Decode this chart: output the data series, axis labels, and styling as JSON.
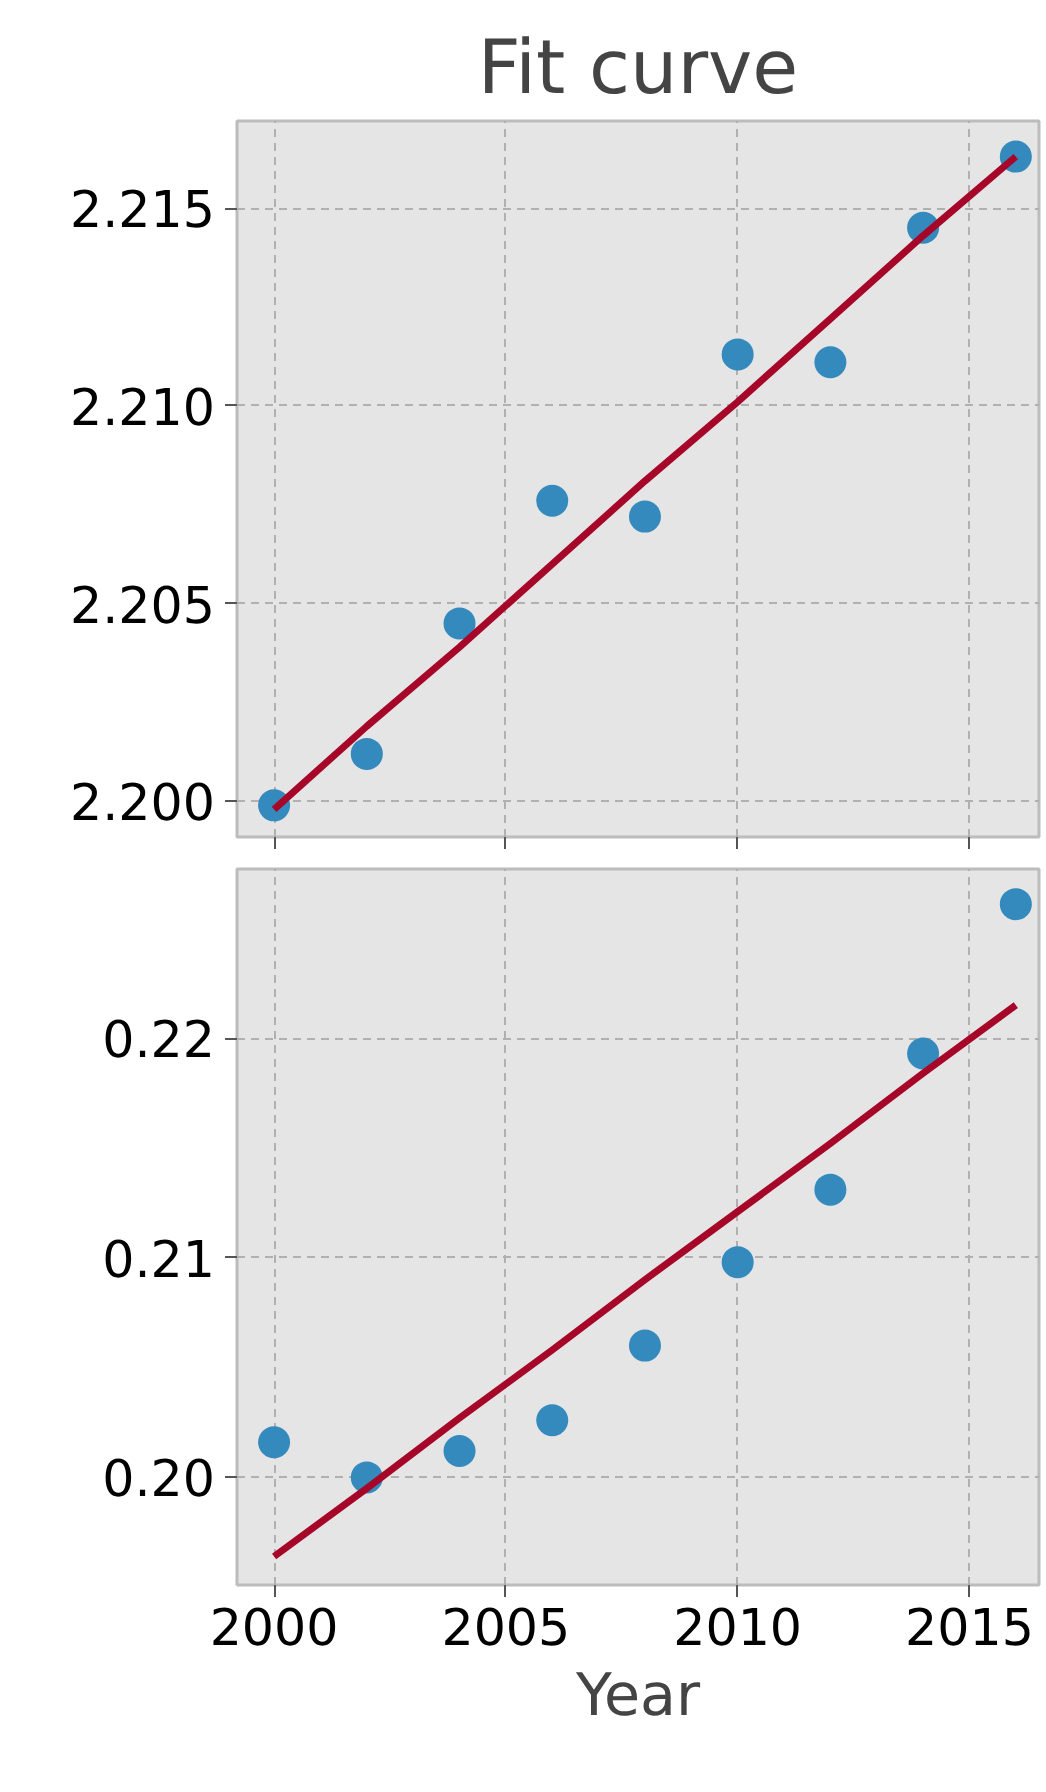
{
  "chart_data": [
    {
      "type": "scatter",
      "title": "Fit curve",
      "x": [
        2000,
        2002,
        2004,
        2006,
        2008,
        2010,
        2012,
        2014,
        2016
      ],
      "series": [
        {
          "marker": "circle",
          "color": "#348abd",
          "values": [
            2.1999,
            2.2012,
            2.2045,
            2.2076,
            2.2072,
            2.2113,
            2.2111,
            2.2145,
            2.2163
          ]
        },
        {
          "type": "line",
          "marker": "none",
          "color": "#a60628",
          "values": [
            2.1998,
            2.2019,
            2.2039,
            2.206,
            2.2081,
            2.2101,
            2.2122,
            2.2143,
            2.2163
          ]
        }
      ],
      "xlim": [
        1999.2,
        2016.5
      ],
      "ylim": [
        2.1991,
        2.2172
      ],
      "xticks": [
        2000,
        2005,
        2010,
        2015
      ],
      "yticks": [
        {
          "value": 2.2,
          "label": "2.200"
        },
        {
          "value": 2.205,
          "label": "2.205"
        },
        {
          "value": 2.21,
          "label": "2.210"
        },
        {
          "value": 2.215,
          "label": "2.215"
        }
      ],
      "grid": true,
      "tick_labels": "y"
    },
    {
      "type": "scatter",
      "xlabel": "Year",
      "x": [
        2000,
        2002,
        2004,
        2006,
        2008,
        2010,
        2012,
        2014,
        2016
      ],
      "series": [
        {
          "marker": "circle",
          "color": "#348abd",
          "values": [
            0.2016,
            0.2,
            0.2012,
            0.2026,
            0.206,
            0.2098,
            0.2131,
            0.2193,
            0.2261
          ]
        },
        {
          "type": "line",
          "marker": "none",
          "color": "#a60628",
          "values": [
            0.1964,
            0.1995,
            0.2027,
            0.2058,
            0.209,
            0.2121,
            0.2152,
            0.2184,
            0.2215
          ]
        }
      ],
      "xlim": [
        1999.2,
        2016.5
      ],
      "ylim": [
        0.1951,
        0.2277
      ],
      "xticks": [
        2000,
        2005,
        2010,
        2015
      ],
      "yticks": [
        {
          "value": 0.2,
          "label": "0.20"
        },
        {
          "value": 0.21,
          "label": "0.21"
        },
        {
          "value": 0.22,
          "label": "0.22"
        }
      ],
      "grid": true
    }
  ]
}
